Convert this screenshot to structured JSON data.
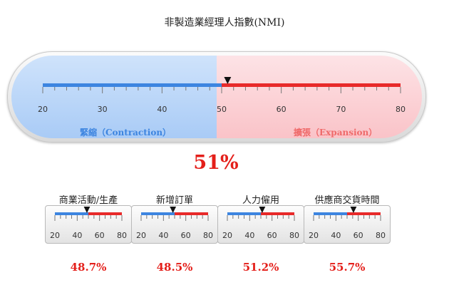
{
  "title": "非製造業經理人指數(NMI)",
  "main_gauge": {
    "value": 51,
    "value_text": "51%",
    "min": 20,
    "max": 80,
    "threshold": 50,
    "tick_labels": [
      "20",
      "30",
      "40",
      "50",
      "60",
      "70",
      "80"
    ],
    "contraction_label": "緊縮（Contraction）",
    "expansion_label": "擴張（Expansion）"
  },
  "sub_gauges": [
    {
      "title": "商業活動/生產",
      "value": 48.7,
      "value_text": "48.7%"
    },
    {
      "title": "新增訂單",
      "value": 48.5,
      "value_text": "48.5%"
    },
    {
      "title": "人力僱用",
      "value": 51.2,
      "value_text": "51.2%"
    },
    {
      "title": "供應商交貨時間",
      "value": 55.7,
      "value_text": "55.7%"
    }
  ],
  "sub_scale": {
    "min": 20,
    "max": 80,
    "threshold": 50,
    "tick_labels": [
      "20",
      "40",
      "60",
      "80"
    ]
  },
  "colors": {
    "contraction": "#3d85e0",
    "expansion": "#e82a2a",
    "value_text": "#e41f1a"
  }
}
